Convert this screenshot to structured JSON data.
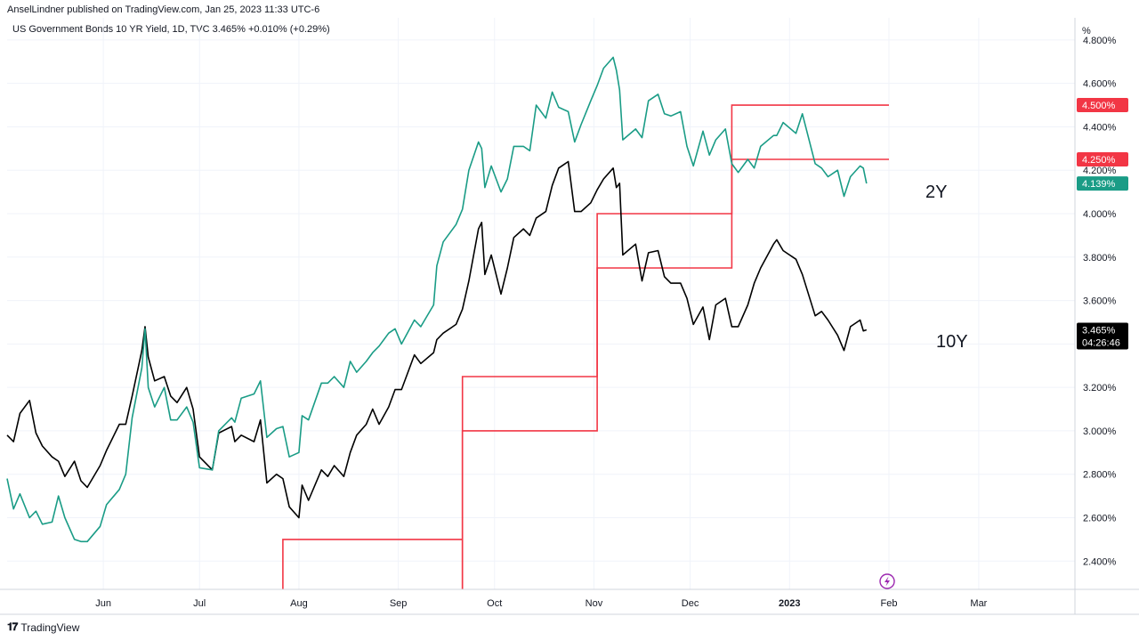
{
  "header": {
    "publisher_line": "AnselLindner published on TradingView.com, Jan 25, 2023 11:33 UTC-6",
    "symbol_line": "US Government Bonds 10 YR Yield, 1D, TVC  3.465%  +0.010% (+0.29%)"
  },
  "footer": {
    "brand": "TradingView"
  },
  "colors": {
    "ten_year": "#000000",
    "two_year": "#1a9c86",
    "fed_funds": "#f23645",
    "grid": "#f0f3fa",
    "axis_border": "#d1d4dc"
  },
  "icons": {
    "footer_logo": "tradingview-logo-icon",
    "flash": "lightning-icon"
  },
  "chart_data": {
    "type": "line",
    "x_ticks": [
      "Jun",
      "Jul",
      "Aug",
      "Sep",
      "Oct",
      "Nov",
      "Dec",
      "2023",
      "Feb",
      "Mar"
    ],
    "y_axis_unit": "%",
    "y_ticks": [
      "2.400%",
      "2.600%",
      "2.800%",
      "3.000%",
      "3.200%",
      "3.400%",
      "3.600%",
      "3.800%",
      "4.000%",
      "4.200%",
      "4.400%",
      "4.600%",
      "4.800%"
    ],
    "ylim": [
      2.27,
      4.82
    ],
    "xlim": [
      "2022-05-02",
      "2023-03-31"
    ],
    "grid": true,
    "series": [
      {
        "name": "10Y",
        "last_value": "3.465%",
        "countdown": "04:26:46",
        "points": [
          [
            "2022-05-02",
            2.98
          ],
          [
            "2022-05-04",
            2.95
          ],
          [
            "2022-05-06",
            3.08
          ],
          [
            "2022-05-09",
            3.14
          ],
          [
            "2022-05-11",
            2.99
          ],
          [
            "2022-05-13",
            2.93
          ],
          [
            "2022-05-16",
            2.88
          ],
          [
            "2022-05-18",
            2.86
          ],
          [
            "2022-05-20",
            2.79
          ],
          [
            "2022-05-23",
            2.86
          ],
          [
            "2022-05-25",
            2.77
          ],
          [
            "2022-05-27",
            2.74
          ],
          [
            "2022-05-31",
            2.84
          ],
          [
            "2022-06-02",
            2.91
          ],
          [
            "2022-06-06",
            3.03
          ],
          [
            "2022-06-08",
            3.03
          ],
          [
            "2022-06-10",
            3.16
          ],
          [
            "2022-06-13",
            3.37
          ],
          [
            "2022-06-14",
            3.48
          ],
          [
            "2022-06-15",
            3.34
          ],
          [
            "2022-06-17",
            3.23
          ],
          [
            "2022-06-20",
            3.25
          ],
          [
            "2022-06-22",
            3.16
          ],
          [
            "2022-06-24",
            3.13
          ],
          [
            "2022-06-27",
            3.2
          ],
          [
            "2022-06-29",
            3.1
          ],
          [
            "2022-07-01",
            2.88
          ],
          [
            "2022-07-05",
            2.82
          ],
          [
            "2022-07-07",
            2.99
          ],
          [
            "2022-07-11",
            3.02
          ],
          [
            "2022-07-12",
            2.95
          ],
          [
            "2022-07-14",
            2.98
          ],
          [
            "2022-07-18",
            2.95
          ],
          [
            "2022-07-20",
            3.05
          ],
          [
            "2022-07-22",
            2.76
          ],
          [
            "2022-07-25",
            2.8
          ],
          [
            "2022-07-27",
            2.78
          ],
          [
            "2022-07-29",
            2.65
          ],
          [
            "2022-08-01",
            2.6
          ],
          [
            "2022-08-02",
            2.75
          ],
          [
            "2022-08-04",
            2.68
          ],
          [
            "2022-08-08",
            2.82
          ],
          [
            "2022-08-10",
            2.79
          ],
          [
            "2022-08-12",
            2.84
          ],
          [
            "2022-08-15",
            2.79
          ],
          [
            "2022-08-17",
            2.9
          ],
          [
            "2022-08-19",
            2.98
          ],
          [
            "2022-08-22",
            3.03
          ],
          [
            "2022-08-24",
            3.1
          ],
          [
            "2022-08-26",
            3.03
          ],
          [
            "2022-08-29",
            3.11
          ],
          [
            "2022-08-31",
            3.19
          ],
          [
            "2022-09-02",
            3.19
          ],
          [
            "2022-09-06",
            3.35
          ],
          [
            "2022-09-08",
            3.31
          ],
          [
            "2022-09-12",
            3.36
          ],
          [
            "2022-09-13",
            3.42
          ],
          [
            "2022-09-15",
            3.45
          ],
          [
            "2022-09-19",
            3.49
          ],
          [
            "2022-09-21",
            3.56
          ],
          [
            "2022-09-23",
            3.69
          ],
          [
            "2022-09-26",
            3.93
          ],
          [
            "2022-09-27",
            3.96
          ],
          [
            "2022-09-28",
            3.72
          ],
          [
            "2022-09-30",
            3.81
          ],
          [
            "2022-10-03",
            3.63
          ],
          [
            "2022-10-05",
            3.75
          ],
          [
            "2022-10-07",
            3.89
          ],
          [
            "2022-10-10",
            3.93
          ],
          [
            "2022-10-12",
            3.9
          ],
          [
            "2022-10-14",
            3.98
          ],
          [
            "2022-10-17",
            4.01
          ],
          [
            "2022-10-19",
            4.13
          ],
          [
            "2022-10-21",
            4.21
          ],
          [
            "2022-10-24",
            4.24
          ],
          [
            "2022-10-26",
            4.01
          ],
          [
            "2022-10-28",
            4.01
          ],
          [
            "2022-10-31",
            4.05
          ],
          [
            "2022-11-02",
            4.11
          ],
          [
            "2022-11-04",
            4.16
          ],
          [
            "2022-11-07",
            4.21
          ],
          [
            "2022-11-08",
            4.12
          ],
          [
            "2022-11-09",
            4.14
          ],
          [
            "2022-11-10",
            3.81
          ],
          [
            "2022-11-14",
            3.86
          ],
          [
            "2022-11-16",
            3.69
          ],
          [
            "2022-11-18",
            3.82
          ],
          [
            "2022-11-21",
            3.83
          ],
          [
            "2022-11-23",
            3.71
          ],
          [
            "2022-11-25",
            3.68
          ],
          [
            "2022-11-28",
            3.68
          ],
          [
            "2022-11-30",
            3.61
          ],
          [
            "2022-12-02",
            3.49
          ],
          [
            "2022-12-05",
            3.57
          ],
          [
            "2022-12-07",
            3.42
          ],
          [
            "2022-12-09",
            3.58
          ],
          [
            "2022-12-12",
            3.61
          ],
          [
            "2022-12-14",
            3.48
          ],
          [
            "2022-12-16",
            3.48
          ],
          [
            "2022-12-19",
            3.58
          ],
          [
            "2022-12-21",
            3.68
          ],
          [
            "2022-12-23",
            3.75
          ],
          [
            "2022-12-27",
            3.86
          ],
          [
            "2022-12-28",
            3.88
          ],
          [
            "2022-12-30",
            3.83
          ],
          [
            "2023-01-03",
            3.79
          ],
          [
            "2023-01-05",
            3.72
          ],
          [
            "2023-01-09",
            3.53
          ],
          [
            "2023-01-11",
            3.55
          ],
          [
            "2023-01-13",
            3.51
          ],
          [
            "2023-01-16",
            3.44
          ],
          [
            "2023-01-18",
            3.37
          ],
          [
            "2023-01-20",
            3.48
          ],
          [
            "2023-01-23",
            3.51
          ],
          [
            "2023-01-24",
            3.46
          ],
          [
            "2023-01-25",
            3.465
          ]
        ]
      },
      {
        "name": "2Y",
        "last_value": "4.139%",
        "points": [
          [
            "2022-05-02",
            2.78
          ],
          [
            "2022-05-04",
            2.64
          ],
          [
            "2022-05-06",
            2.71
          ],
          [
            "2022-05-09",
            2.6
          ],
          [
            "2022-05-11",
            2.63
          ],
          [
            "2022-05-13",
            2.57
          ],
          [
            "2022-05-16",
            2.58
          ],
          [
            "2022-05-18",
            2.7
          ],
          [
            "2022-05-20",
            2.6
          ],
          [
            "2022-05-23",
            2.5
          ],
          [
            "2022-05-25",
            2.49
          ],
          [
            "2022-05-27",
            2.49
          ],
          [
            "2022-05-31",
            2.56
          ],
          [
            "2022-06-02",
            2.66
          ],
          [
            "2022-06-06",
            2.73
          ],
          [
            "2022-06-08",
            2.8
          ],
          [
            "2022-06-10",
            3.06
          ],
          [
            "2022-06-13",
            3.29
          ],
          [
            "2022-06-14",
            3.47
          ],
          [
            "2022-06-15",
            3.2
          ],
          [
            "2022-06-17",
            3.11
          ],
          [
            "2022-06-20",
            3.2
          ],
          [
            "2022-06-22",
            3.05
          ],
          [
            "2022-06-24",
            3.05
          ],
          [
            "2022-06-27",
            3.11
          ],
          [
            "2022-06-29",
            3.04
          ],
          [
            "2022-07-01",
            2.83
          ],
          [
            "2022-07-05",
            2.82
          ],
          [
            "2022-07-07",
            3.0
          ],
          [
            "2022-07-11",
            3.06
          ],
          [
            "2022-07-12",
            3.04
          ],
          [
            "2022-07-14",
            3.15
          ],
          [
            "2022-07-18",
            3.17
          ],
          [
            "2022-07-20",
            3.23
          ],
          [
            "2022-07-22",
            2.97
          ],
          [
            "2022-07-25",
            3.01
          ],
          [
            "2022-07-27",
            3.02
          ],
          [
            "2022-07-29",
            2.88
          ],
          [
            "2022-08-01",
            2.9
          ],
          [
            "2022-08-02",
            3.07
          ],
          [
            "2022-08-04",
            3.05
          ],
          [
            "2022-08-08",
            3.22
          ],
          [
            "2022-08-10",
            3.22
          ],
          [
            "2022-08-12",
            3.25
          ],
          [
            "2022-08-15",
            3.2
          ],
          [
            "2022-08-17",
            3.32
          ],
          [
            "2022-08-19",
            3.27
          ],
          [
            "2022-08-22",
            3.32
          ],
          [
            "2022-08-24",
            3.36
          ],
          [
            "2022-08-26",
            3.39
          ],
          [
            "2022-08-29",
            3.45
          ],
          [
            "2022-08-31",
            3.47
          ],
          [
            "2022-09-02",
            3.4
          ],
          [
            "2022-09-06",
            3.51
          ],
          [
            "2022-09-08",
            3.48
          ],
          [
            "2022-09-12",
            3.58
          ],
          [
            "2022-09-13",
            3.76
          ],
          [
            "2022-09-15",
            3.87
          ],
          [
            "2022-09-19",
            3.95
          ],
          [
            "2022-09-21",
            4.02
          ],
          [
            "2022-09-23",
            4.2
          ],
          [
            "2022-09-26",
            4.33
          ],
          [
            "2022-09-27",
            4.3
          ],
          [
            "2022-09-28",
            4.12
          ],
          [
            "2022-09-30",
            4.22
          ],
          [
            "2022-10-03",
            4.1
          ],
          [
            "2022-10-05",
            4.16
          ],
          [
            "2022-10-07",
            4.31
          ],
          [
            "2022-10-10",
            4.31
          ],
          [
            "2022-10-12",
            4.29
          ],
          [
            "2022-10-14",
            4.5
          ],
          [
            "2022-10-17",
            4.44
          ],
          [
            "2022-10-19",
            4.56
          ],
          [
            "2022-10-21",
            4.49
          ],
          [
            "2022-10-24",
            4.47
          ],
          [
            "2022-10-26",
            4.33
          ],
          [
            "2022-10-28",
            4.41
          ],
          [
            "2022-10-31",
            4.52
          ],
          [
            "2022-11-02",
            4.59
          ],
          [
            "2022-11-04",
            4.67
          ],
          [
            "2022-11-07",
            4.72
          ],
          [
            "2022-11-08",
            4.66
          ],
          [
            "2022-11-09",
            4.57
          ],
          [
            "2022-11-10",
            4.34
          ],
          [
            "2022-11-14",
            4.39
          ],
          [
            "2022-11-16",
            4.35
          ],
          [
            "2022-11-18",
            4.52
          ],
          [
            "2022-11-21",
            4.55
          ],
          [
            "2022-11-23",
            4.46
          ],
          [
            "2022-11-25",
            4.45
          ],
          [
            "2022-11-28",
            4.47
          ],
          [
            "2022-11-30",
            4.31
          ],
          [
            "2022-12-02",
            4.22
          ],
          [
            "2022-12-05",
            4.38
          ],
          [
            "2022-12-07",
            4.27
          ],
          [
            "2022-12-09",
            4.34
          ],
          [
            "2022-12-12",
            4.39
          ],
          [
            "2022-12-14",
            4.23
          ],
          [
            "2022-12-16",
            4.19
          ],
          [
            "2022-12-19",
            4.25
          ],
          [
            "2022-12-21",
            4.21
          ],
          [
            "2022-12-23",
            4.31
          ],
          [
            "2022-12-27",
            4.36
          ],
          [
            "2022-12-28",
            4.36
          ],
          [
            "2022-12-30",
            4.42
          ],
          [
            "2023-01-03",
            4.37
          ],
          [
            "2023-01-05",
            4.46
          ],
          [
            "2023-01-09",
            4.23
          ],
          [
            "2023-01-11",
            4.21
          ],
          [
            "2023-01-13",
            4.17
          ],
          [
            "2023-01-16",
            4.2
          ],
          [
            "2023-01-18",
            4.08
          ],
          [
            "2023-01-20",
            4.17
          ],
          [
            "2023-01-23",
            4.22
          ],
          [
            "2023-01-24",
            4.21
          ],
          [
            "2023-01-25",
            4.139
          ]
        ]
      }
    ],
    "fed_funds_bands": {
      "points": [
        [
          "2022-07-27",
          2.25
        ],
        [
          "2022-07-27",
          2.5
        ],
        [
          "2022-09-21",
          2.5
        ],
        [
          "2022-09-21",
          2.25
        ],
        [
          "2022-09-21",
          2.5
        ],
        [
          "2022-09-21",
          3.25
        ],
        [
          "2022-11-02",
          3.25
        ],
        [
          "2022-11-02",
          4.0
        ],
        [
          "2022-12-14",
          4.0
        ],
        [
          "2022-12-14",
          4.5
        ],
        [
          "2023-02-01",
          4.5
        ]
      ],
      "points_lower": [
        [
          "2022-09-21",
          2.25
        ],
        [
          "2022-09-21",
          3.0
        ],
        [
          "2022-11-02",
          3.0
        ],
        [
          "2022-11-02",
          3.75
        ],
        [
          "2022-12-14",
          3.75
        ],
        [
          "2022-12-14",
          4.25
        ],
        [
          "2023-02-01",
          4.25
        ]
      ],
      "badges": [
        "4.500%",
        "4.250%"
      ]
    }
  }
}
